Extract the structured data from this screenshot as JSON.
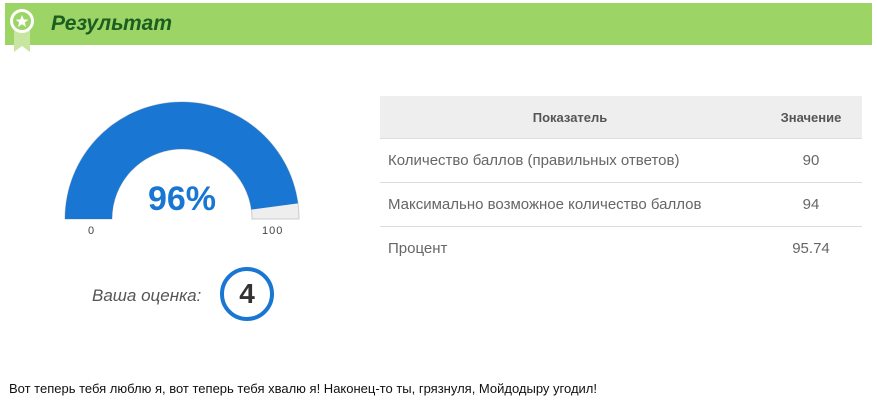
{
  "header": {
    "title": "Результат",
    "icon": "award-ribbon-icon"
  },
  "gauge": {
    "value": 95.74,
    "label": "96%",
    "min_label": "0",
    "max_label": "100",
    "fill_color": "#1976d2",
    "track_color": "#eeeeee"
  },
  "grade": {
    "label": "Ваша оценка:",
    "value": "4"
  },
  "table": {
    "headers": [
      "Показатель",
      "Значение"
    ],
    "rows": [
      [
        "Количество баллов (правильных ответов)",
        "90"
      ],
      [
        "Максимально возможное количество баллов",
        "94"
      ],
      [
        "Процент",
        "95.74"
      ]
    ]
  },
  "message": "Вот теперь тебя люблю я, вот теперь тебя хвалю я! Наконец-то ты, грязнуля, Мойдодыру угодил!"
}
